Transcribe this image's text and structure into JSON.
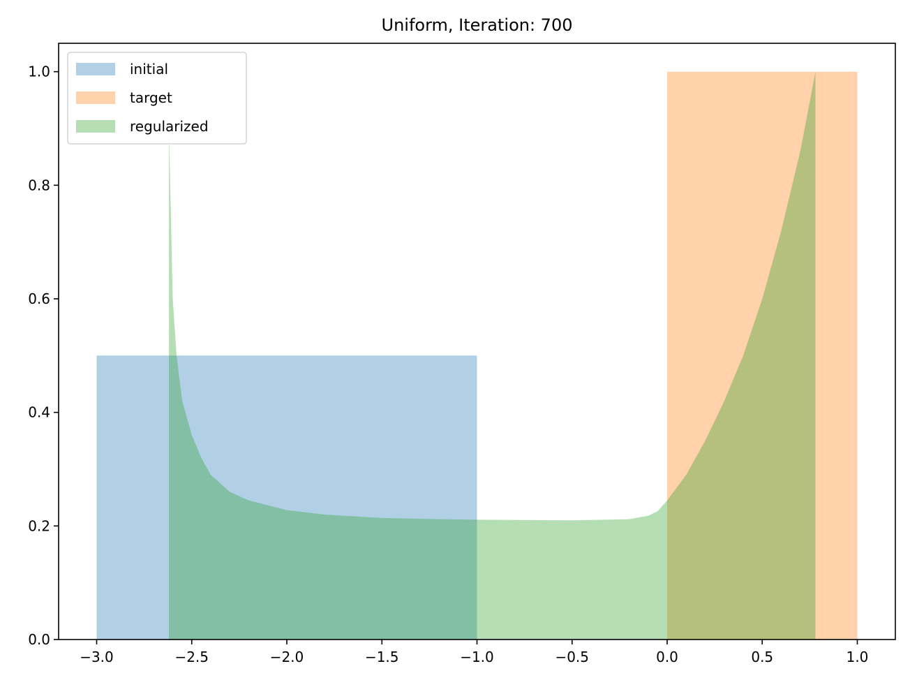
{
  "chart_data": {
    "type": "area",
    "title": "Uniform, Iteration: 700",
    "xlabel": "",
    "ylabel": "",
    "xlim": [
      -3.2,
      1.2
    ],
    "ylim": [
      0.0,
      1.05
    ],
    "xticks": [
      -3.0,
      -2.5,
      -2.0,
      -1.5,
      -1.0,
      -0.5,
      0.0,
      0.5,
      1.0
    ],
    "xtick_labels": [
      "−3.0",
      "−2.5",
      "−2.0",
      "−1.5",
      "−1.0",
      "−0.5",
      "0.0",
      "0.5",
      "1.0"
    ],
    "yticks": [
      0.0,
      0.2,
      0.4,
      0.6,
      0.8,
      1.0
    ],
    "ytick_labels": [
      "0.0",
      "0.2",
      "0.4",
      "0.6",
      "0.8",
      "1.0"
    ],
    "legend_position": "upper-left",
    "series": [
      {
        "name": "initial",
        "color": "#1f77b4",
        "x": [
          -3.0,
          -3.0,
          -1.0,
          -1.0
        ],
        "y": [
          0.0,
          0.5,
          0.5,
          0.0
        ]
      },
      {
        "name": "target",
        "color": "#ff7f0e",
        "x": [
          0.0,
          0.0,
          1.0,
          1.0
        ],
        "y": [
          0.0,
          1.0,
          1.0,
          0.0
        ]
      },
      {
        "name": "regularized",
        "color": "#2ca02c",
        "x": [
          -2.62,
          -2.62,
          -2.61,
          -2.6,
          -2.58,
          -2.55,
          -2.5,
          -2.45,
          -2.4,
          -2.3,
          -2.2,
          -2.0,
          -1.8,
          -1.5,
          -1.2,
          -1.0,
          -0.5,
          -0.2,
          -0.1,
          -0.05,
          0.0,
          0.1,
          0.2,
          0.3,
          0.4,
          0.5,
          0.6,
          0.65,
          0.7,
          0.74,
          0.78,
          0.78
        ],
        "y": [
          0.0,
          0.9,
          0.75,
          0.6,
          0.5,
          0.42,
          0.36,
          0.32,
          0.29,
          0.26,
          0.245,
          0.228,
          0.22,
          0.214,
          0.212,
          0.211,
          0.21,
          0.212,
          0.218,
          0.226,
          0.245,
          0.29,
          0.35,
          0.42,
          0.5,
          0.6,
          0.72,
          0.79,
          0.86,
          0.93,
          1.0,
          0.0
        ]
      }
    ]
  }
}
